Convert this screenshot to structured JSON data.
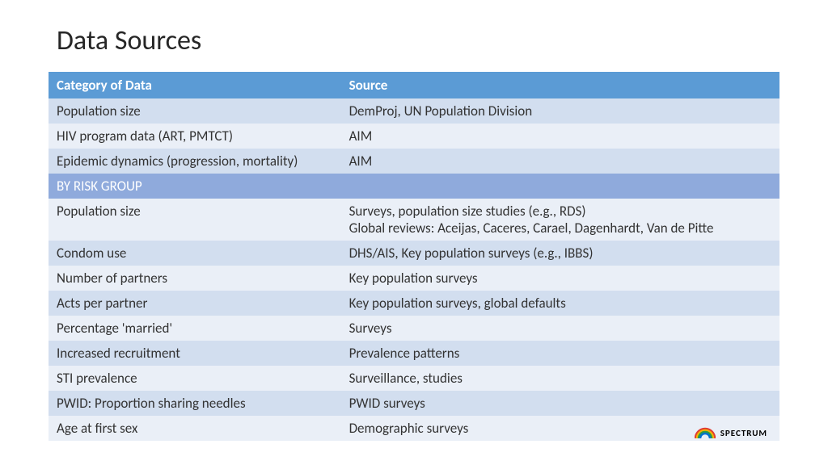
{
  "title": "Data Sources",
  "table": {
    "header_bg": "#5b9bd5",
    "header_color": "#ffffff",
    "sub_header_bg": "#8faadc",
    "row_bg_even": "#d2deef",
    "row_bg_odd": "#eaeff7",
    "columns": [
      "Category of Data",
      "Source"
    ],
    "col_widths": [
      "40%",
      "60%"
    ],
    "rows": [
      {
        "type": "data",
        "cells": [
          "Population size",
          "DemProj, UN Population Division"
        ]
      },
      {
        "type": "data",
        "cells": [
          "HIV program data (ART, PMTCT)",
          "AIM"
        ]
      },
      {
        "type": "data",
        "cells": [
          "Epidemic dynamics (progression, mortality)",
          "AIM"
        ]
      },
      {
        "type": "sub",
        "cells": [
          "BY RISK GROUP",
          ""
        ]
      },
      {
        "type": "data",
        "cells": [
          "Population size",
          "Surveys, population size studies (e.g., RDS)\nGlobal reviews: Aceijas, Caceres, Carael, Dagenhardt, Van de Pitte"
        ]
      },
      {
        "type": "data",
        "cells": [
          "Condom use",
          "DHS/AIS, Key population surveys (e.g., IBBS)"
        ]
      },
      {
        "type": "data",
        "cells": [
          "Number of partners",
          "Key population surveys"
        ]
      },
      {
        "type": "data",
        "cells": [
          "Acts per partner",
          "Key population surveys, global defaults"
        ]
      },
      {
        "type": "data",
        "cells": [
          "Percentage 'married'",
          "Surveys"
        ]
      },
      {
        "type": "data",
        "cells": [
          "Increased recruitment",
          "Prevalence patterns"
        ]
      },
      {
        "type": "data",
        "cells": [
          "STI prevalence",
          "Surveillance, studies"
        ]
      },
      {
        "type": "data",
        "cells": [
          "PWID: Proportion sharing needles",
          "PWID surveys"
        ]
      },
      {
        "type": "data",
        "cells": [
          "Age at first sex",
          "Demographic surveys"
        ]
      }
    ]
  },
  "logo": {
    "text": "SPECTRUM",
    "colors": [
      "#e03c31",
      "#f7b500",
      "#2e9b47",
      "#0072ce"
    ]
  }
}
